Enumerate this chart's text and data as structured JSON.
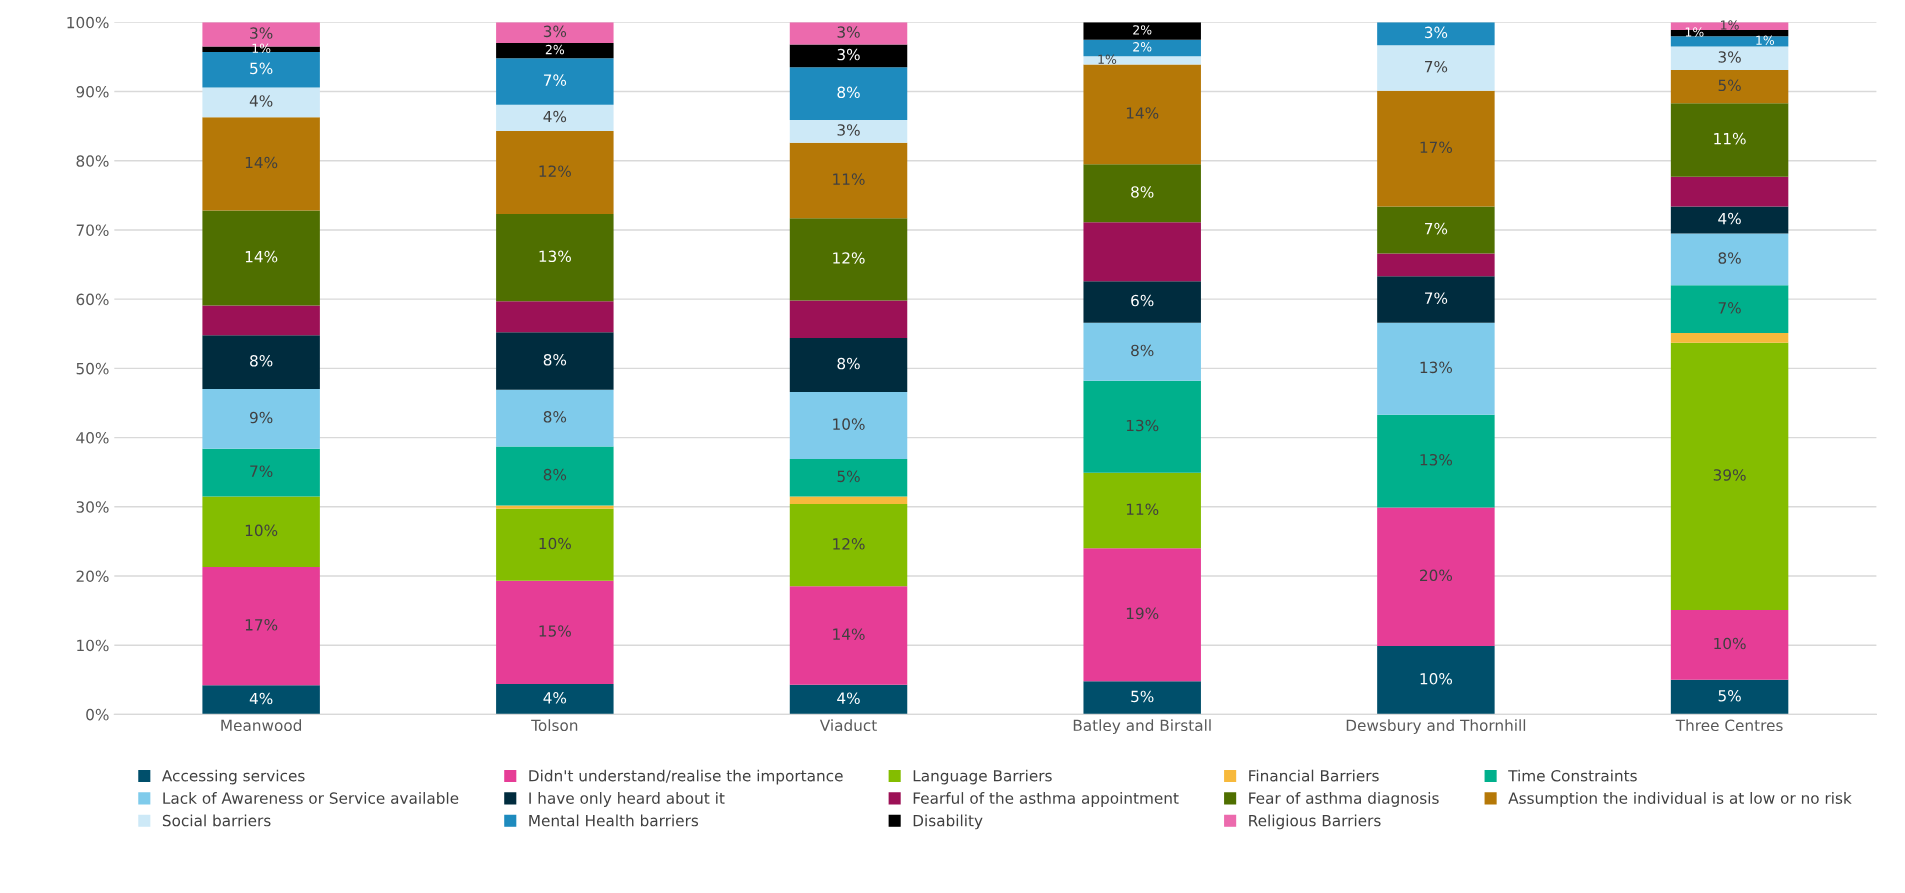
{
  "chart_data": {
    "type": "bar",
    "stacked": true,
    "categories": [
      "Meanwood",
      "Tolson",
      "Viaduct",
      "Batley and Birstall",
      "Dewsbury and Thornhill",
      "Three Centres"
    ],
    "series": [
      {
        "name": "Accessing services",
        "color": "#004f6b",
        "values": [
          4.2,
          4.4,
          4.3,
          4.8,
          9.9,
          5.0
        ],
        "value_labels": [
          "4%",
          "4%",
          "4%",
          "5%",
          "10%",
          "5%"
        ]
      },
      {
        "name": "Didn't understand/realise the importance",
        "color": "#e63d96",
        "values": [
          17.1,
          14.9,
          14.2,
          19.2,
          20.0,
          10.1
        ],
        "value_labels": [
          "17%",
          "15%",
          "14%",
          "19%",
          "20%",
          "10%"
        ]
      },
      {
        "name": "Language Barriers",
        "color": "#84bd00",
        "values": [
          10.2,
          10.4,
          11.9,
          10.9,
          0,
          38.6
        ],
        "value_labels": [
          "10%",
          "10%",
          "12%",
          "11%",
          null,
          "39%"
        ]
      },
      {
        "name": "Financial Barriers",
        "color": "#f7b93c",
        "values": [
          0,
          0.5,
          1.1,
          0,
          0,
          1.4
        ],
        "value_labels": [
          null,
          null,
          null,
          null,
          null,
          null
        ]
      },
      {
        "name": "Time Constraints",
        "color": "#00b08c",
        "values": [
          6.9,
          8.5,
          5.4,
          13.3,
          13.4,
          6.9
        ],
        "value_labels": [
          "7%",
          "8%",
          "5%",
          "13%",
          "13%",
          "7%"
        ]
      },
      {
        "name": "Lack of Awareness or Service available",
        "color": "#7fcbeb",
        "values": [
          8.6,
          8.2,
          9.7,
          8.4,
          13.3,
          7.5
        ],
        "value_labels": [
          "9%",
          "8%",
          "10%",
          "8%",
          "13%",
          "8%"
        ]
      },
      {
        "name": "I have only heard about it",
        "color": "#002c3e",
        "values": [
          7.8,
          8.3,
          7.8,
          6.0,
          6.7,
          3.9
        ],
        "value_labels": [
          "8%",
          "8%",
          "8%",
          "6%",
          "7%",
          "4%"
        ]
      },
      {
        "name": "Fearful of the asthma appointment",
        "color": "#9c1156",
        "values": [
          4.3,
          4.5,
          5.4,
          8.5,
          3.3,
          4.3
        ],
        "value_labels": [
          null,
          null,
          null,
          null,
          null,
          null
        ]
      },
      {
        "name": "Fear of asthma diagnosis",
        "color": "#4f6f00",
        "values": [
          13.7,
          12.6,
          11.9,
          8.4,
          6.8,
          10.6
        ],
        "value_labels": [
          "14%",
          "13%",
          "12%",
          "8%",
          "7%",
          "11%"
        ]
      },
      {
        "name": "Assumption the individual is at low or no risk",
        "color": "#b57807",
        "values": [
          13.5,
          12.0,
          10.9,
          14.4,
          16.7,
          4.8
        ],
        "value_labels": [
          "14%",
          "12%",
          "11%",
          "14%",
          "17%",
          "5%"
        ]
      },
      {
        "name": "Social barriers",
        "color": "#cde9f7",
        "values": [
          4.3,
          3.8,
          3.3,
          1.2,
          6.6,
          3.4
        ],
        "value_labels": [
          "4%",
          "4%",
          "3%",
          "1%",
          "7%",
          "3%"
        ]
      },
      {
        "name": "Mental Health barriers",
        "color": "#1e8bbe",
        "values": [
          5.1,
          6.7,
          7.6,
          2.4,
          3.3,
          1.5
        ],
        "value_labels": [
          "5%",
          "7%",
          "8%",
          "2%",
          "3%",
          "1%"
        ]
      },
      {
        "name": "Disability",
        "color": "#000000",
        "values": [
          0.8,
          2.2,
          3.3,
          2.5,
          0,
          0.9
        ],
        "value_labels": [
          "1%",
          "2%",
          "3%",
          "2%",
          null,
          "1%"
        ]
      },
      {
        "name": "Religious Barriers",
        "color": "#ec6aad",
        "values": [
          3.5,
          3.0,
          3.2,
          0,
          0,
          1.1
        ],
        "value_labels": [
          "3%",
          "3%",
          "3%",
          null,
          null,
          "1%"
        ]
      }
    ],
    "ylim": [
      0,
      100
    ],
    "yticks": [
      {
        "value": 0,
        "label": "0%"
      },
      {
        "value": 10,
        "label": "10%"
      },
      {
        "value": 20,
        "label": "20%"
      },
      {
        "value": 30,
        "label": "30%"
      },
      {
        "value": 40,
        "label": "40%"
      },
      {
        "value": 50,
        "label": "50%"
      },
      {
        "value": 60,
        "label": "60%"
      },
      {
        "value": 70,
        "label": "70%"
      },
      {
        "value": 80,
        "label": "80%"
      },
      {
        "value": 90,
        "label": "90%"
      },
      {
        "value": 100,
        "label": "100%"
      }
    ],
    "grid": "y",
    "legend": "bottom"
  }
}
